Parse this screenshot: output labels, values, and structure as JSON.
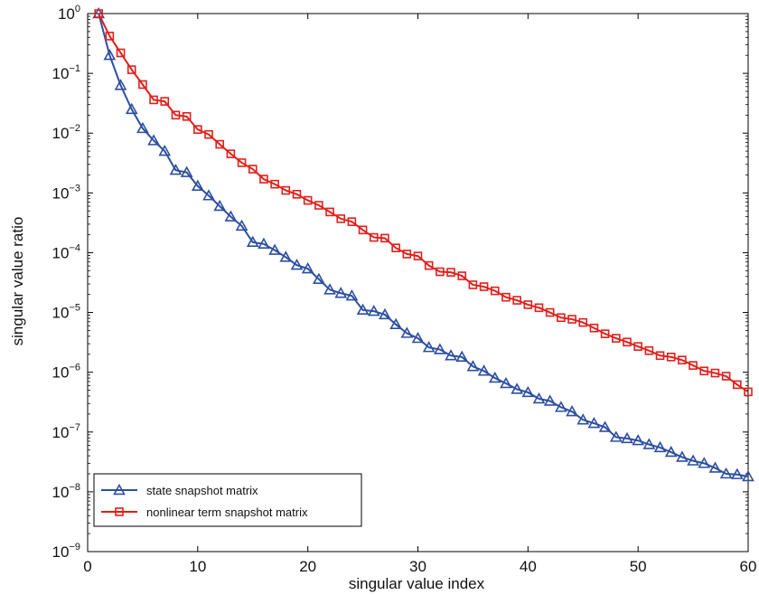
{
  "chart_data": {
    "type": "line",
    "title": "",
    "xlabel": "singular value index",
    "ylabel": "singular value ratio",
    "xlim": [
      0,
      60
    ],
    "ylim": [
      1e-09,
      1
    ],
    "yscale": "log",
    "grid": false,
    "legend_position": "bottom-left",
    "x_ticks": [
      "0",
      "10",
      "20",
      "30",
      "40",
      "50",
      "60"
    ],
    "y_ticks": [
      {
        "base": "10",
        "exp": "0"
      },
      {
        "base": "10",
        "exp": "−1"
      },
      {
        "base": "10",
        "exp": "−2"
      },
      {
        "base": "10",
        "exp": "−3"
      },
      {
        "base": "10",
        "exp": "−4"
      },
      {
        "base": "10",
        "exp": "−5"
      },
      {
        "base": "10",
        "exp": "−6"
      },
      {
        "base": "10",
        "exp": "−7"
      },
      {
        "base": "10",
        "exp": "−8"
      },
      {
        "base": "10",
        "exp": "−9"
      }
    ],
    "x": [
      1,
      2,
      3,
      4,
      5,
      6,
      7,
      8,
      9,
      10,
      11,
      12,
      13,
      14,
      15,
      16,
      17,
      18,
      19,
      20,
      21,
      22,
      23,
      24,
      25,
      26,
      27,
      28,
      29,
      30,
      31,
      32,
      33,
      34,
      35,
      36,
      37,
      38,
      39,
      40,
      41,
      42,
      43,
      44,
      45,
      46,
      47,
      48,
      49,
      50,
      51,
      52,
      53,
      54,
      55,
      56,
      57,
      58,
      59,
      60
    ],
    "series": [
      {
        "name": "state snapshot matrix",
        "color": "#2c4fa0",
        "marker": "triangle",
        "values": [
          1.0,
          0.2,
          0.063,
          0.025,
          0.012,
          0.0075,
          0.005,
          0.0024,
          0.0022,
          0.0013,
          0.0009,
          0.0006,
          0.0004,
          0.00028,
          0.00015,
          0.00014,
          0.00011,
          8.4e-05,
          6.2e-05,
          5.4e-05,
          3.6e-05,
          2.4e-05,
          2.1e-05,
          1.9e-05,
          1.1e-05,
          1.05e-05,
          9.2e-06,
          6.3e-06,
          4.5e-06,
          3.7e-06,
          2.6e-06,
          2.4e-06,
          1.9e-06,
          1.8e-06,
          1.25e-06,
          1.05e-06,
          8e-07,
          6.5e-07,
          5.2e-07,
          4.6e-07,
          3.6e-07,
          3.3e-07,
          2.6e-07,
          2.2e-07,
          1.6e-07,
          1.4e-07,
          1.2e-07,
          8.2e-08,
          7.8e-08,
          7.2e-08,
          6.2e-08,
          5.5e-08,
          4.6e-08,
          3.8e-08,
          3.3e-08,
          3e-08,
          2.5e-08,
          2e-08,
          1.95e-08,
          1.8e-08
        ]
      },
      {
        "name": "nonlinear term snapshot matrix",
        "color": "#e0201b",
        "marker": "square",
        "values": [
          1.0,
          0.42,
          0.22,
          0.115,
          0.065,
          0.036,
          0.034,
          0.02,
          0.019,
          0.0115,
          0.0095,
          0.0065,
          0.0045,
          0.0032,
          0.0025,
          0.0017,
          0.0014,
          0.0011,
          0.00095,
          0.00075,
          0.00062,
          0.00048,
          0.00037,
          0.00033,
          0.00024,
          0.00018,
          0.000175,
          0.00012,
          9.5e-05,
          8.8e-05,
          6.1e-05,
          4.8e-05,
          4.7e-05,
          4.1e-05,
          2.9e-05,
          2.7e-05,
          2.3e-05,
          1.8e-05,
          1.6e-05,
          1.35e-05,
          1.2e-05,
          1e-05,
          8.2e-06,
          7.7e-06,
          6.8e-06,
          5.5e-06,
          4.4e-06,
          3.7e-06,
          3.2e-06,
          2.7e-06,
          2.3e-06,
          1.9e-06,
          1.8e-06,
          1.6e-06,
          1.3e-06,
          1.05e-06,
          9.7e-07,
          8.6e-07,
          6.2e-07,
          4.7e-07
        ]
      }
    ]
  }
}
